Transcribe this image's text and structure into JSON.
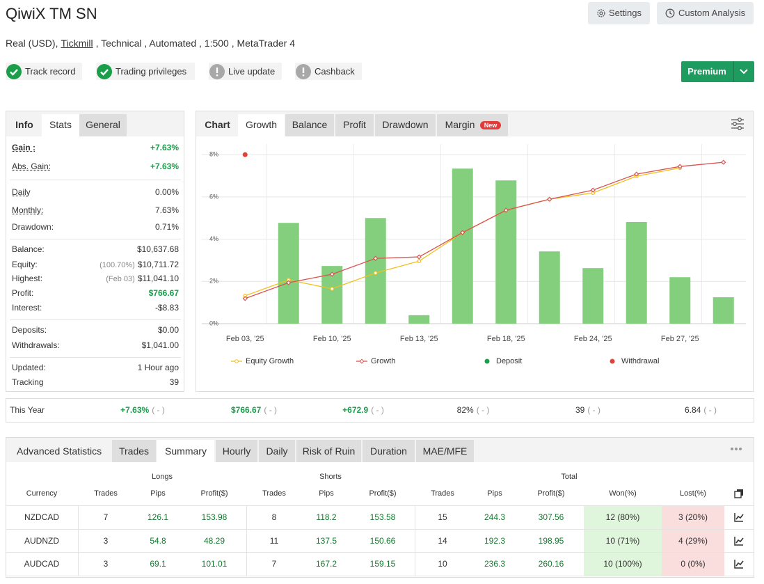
{
  "header": {
    "title": "QiwiX TM SN",
    "buttons": [
      "Settings",
      "Custom Analysis"
    ],
    "subtitle_start": "Real (USD),",
    "broker": "Tickmill",
    "subtitle_end": ", Technical , Automated , 1:500 , MetaTrader 4",
    "premium": "Premium"
  },
  "badges": [
    {
      "label": "Track record",
      "ok": true
    },
    {
      "label": "Trading privileges",
      "ok": true
    },
    {
      "label": "Live update",
      "ok": false
    },
    {
      "label": "Cashback",
      "ok": false
    }
  ],
  "stats_panel": {
    "tabs": [
      "Info",
      "Stats",
      "General"
    ],
    "active_tab": 1,
    "groups": [
      [
        {
          "label": "Gain :",
          "value": "+7.63%",
          "color": "#1a9e4a"
        },
        {
          "label": "Abs. Gain:",
          "value": "+7.63%",
          "color": "#1a9e4a"
        }
      ],
      [
        {
          "label": "Daily",
          "value": "0.00%"
        },
        {
          "label": "Monthly:",
          "value": "7.63%"
        },
        {
          "label": "Drawdown:",
          "value": "0.71%"
        }
      ],
      [
        {
          "label": "Balance:",
          "value": "$10,637.68"
        },
        {
          "label": "Equity:",
          "value": "$10,711.72",
          "note": "(100.70%)"
        },
        {
          "label": "Highest:",
          "value": "$11,041.10",
          "note": "(Feb 03)"
        },
        {
          "label": "Profit:",
          "value": "$766.67",
          "color": "#1a9e4a"
        },
        {
          "label": "Interest:",
          "value": "-$8.83"
        }
      ],
      [
        {
          "label": "Deposits:",
          "value": "$0.00"
        },
        {
          "label": "Withdrawals:",
          "value": "$1,041.00"
        }
      ],
      [
        {
          "label": "Updated:",
          "value": "1 Hour ago"
        },
        {
          "label": "Tracking",
          "value": "39"
        }
      ]
    ]
  },
  "chart_panel": {
    "tabs": [
      "Chart",
      "Growth",
      "Balance",
      "Profit",
      "Drawdown",
      "Margin"
    ],
    "active_tab": 1,
    "new_badge": "New"
  },
  "chart_data": {
    "type": "combo",
    "categories": [
      "Feb 03, '25",
      null,
      "Feb 10, '25",
      null,
      "Feb 13, '25",
      null,
      "Feb 18, '25",
      null,
      "Feb 24, '25",
      null,
      "Feb 27, '25",
      null
    ],
    "bars": {
      "color": "#83cf7d",
      "values": [
        null,
        4.77,
        2.73,
        5.0,
        0.4,
        7.34,
        6.78,
        3.42,
        2.63,
        4.81,
        2.2,
        1.25
      ]
    },
    "series": [
      {
        "name": "Equity Growth",
        "color": "#f0c020",
        "kind": "line",
        "values": [
          1.32,
          2.07,
          1.65,
          2.4,
          2.96,
          4.31,
          5.37,
          5.89,
          6.19,
          6.98,
          7.37,
          null
        ]
      },
      {
        "name": "Growth",
        "color": "#d9534f",
        "kind": "line",
        "values": [
          1.19,
          1.94,
          2.34,
          3.09,
          3.16,
          4.31,
          5.37,
          5.89,
          6.32,
          7.08,
          7.44,
          7.64
        ]
      },
      {
        "name": "Deposit",
        "color": "#1a9e4a",
        "kind": "point",
        "values": [
          null,
          null,
          null,
          null,
          null,
          null,
          null,
          null,
          null,
          null,
          null,
          null
        ]
      },
      {
        "name": "Withdrawal",
        "color": "#e0433a",
        "kind": "point",
        "values": [
          8,
          null,
          null,
          null,
          null,
          null,
          null,
          null,
          null,
          null,
          null,
          null
        ]
      }
    ],
    "ylim": [
      0,
      8.5
    ],
    "yticks": [
      {
        "value": 0,
        "label": "0%"
      },
      {
        "value": 2,
        "label": "2%"
      },
      {
        "value": 4,
        "label": "4%"
      },
      {
        "value": 6,
        "label": "6%"
      },
      {
        "value": 8,
        "label": "8%"
      }
    ],
    "grid": true
  },
  "period_row": {
    "label": "This Year",
    "cells": [
      {
        "value": "+7.63%",
        "note": "( - )",
        "color": "#1a9e4a"
      },
      {
        "value": "$766.67",
        "note": "( - )",
        "color": "#1a9e4a"
      },
      {
        "value": "+672.9",
        "note": "( - )",
        "color": "#1a9e4a"
      },
      {
        "value": "82%",
        "note": "( - )"
      },
      {
        "value": "39",
        "note": "( - )"
      },
      {
        "value": "6.84",
        "note": "( - )"
      }
    ]
  },
  "advanced": {
    "title": "Advanced Statistics",
    "tabs": [
      "Trades",
      "Summary",
      "Hourly",
      "Daily",
      "Risk of Ruin",
      "Duration",
      "MAE/MFE"
    ],
    "active_tab": 1,
    "groups": [
      "Longs",
      "Shorts",
      "Total"
    ],
    "columns": [
      "Currency",
      "Trades",
      "Pips",
      "Profit($)",
      "Trades",
      "Pips",
      "Profit($)",
      "Trades",
      "Pips",
      "Profit($)",
      "Won(%)",
      "Lost(%)"
    ],
    "rows": [
      [
        "NZDCAD",
        "7",
        "126.1",
        "153.98",
        "8",
        "118.2",
        "153.58",
        "15",
        "244.3",
        "307.56",
        "12 (80%)",
        "3 (20%)"
      ],
      [
        "AUDNZD",
        "3",
        "54.8",
        "48.29",
        "11",
        "137.5",
        "150.66",
        "14",
        "192.3",
        "198.95",
        "10 (71%)",
        "4 (29%)"
      ],
      [
        "AUDCAD",
        "3",
        "69.1",
        "101.01",
        "7",
        "167.2",
        "159.15",
        "10",
        "236.3",
        "260.16",
        "10 (100%)",
        "0 (0%)"
      ]
    ]
  }
}
